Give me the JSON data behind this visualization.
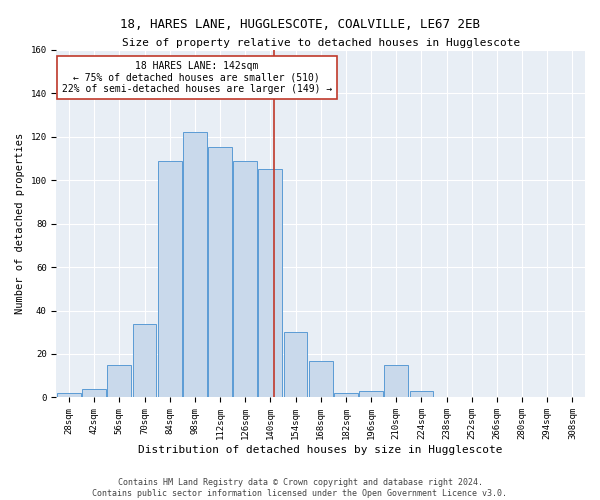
{
  "title1": "18, HARES LANE, HUGGLESCOTE, COALVILLE, LE67 2EB",
  "title2": "Size of property relative to detached houses in Hugglescote",
  "xlabel": "Distribution of detached houses by size in Hugglescote",
  "ylabel": "Number of detached properties",
  "footer1": "Contains HM Land Registry data © Crown copyright and database right 2024.",
  "footer2": "Contains public sector information licensed under the Open Government Licence v3.0.",
  "bar_labels": [
    "28sqm",
    "42sqm",
    "56sqm",
    "70sqm",
    "84sqm",
    "98sqm",
    "112sqm",
    "126sqm",
    "140sqm",
    "154sqm",
    "168sqm",
    "182sqm",
    "196sqm",
    "210sqm",
    "224sqm",
    "238sqm",
    "252sqm",
    "266sqm",
    "280sqm",
    "294sqm",
    "308sqm"
  ],
  "bar_heights": [
    2,
    4,
    15,
    34,
    109,
    122,
    115,
    109,
    105,
    30,
    17,
    2,
    3,
    15,
    3,
    0,
    0,
    0,
    0,
    0,
    0
  ],
  "bar_color": "#c9d9eb",
  "bar_edge_color": "#5b9bd5",
  "property_size": 142,
  "vline_color": "#c0392b",
  "annotation_line1": "18 HARES LANE: 142sqm",
  "annotation_line2": "← 75% of detached houses are smaller (510)",
  "annotation_line3": "22% of semi-detached houses are larger (149) →",
  "annotation_box_edge": "#c0392b",
  "annotation_box_face": "#ffffff",
  "ylim": [
    0,
    160
  ],
  "bg_color": "#e8eef5",
  "grid_color": "#ffffff",
  "title1_fontsize": 9,
  "title2_fontsize": 8,
  "xlabel_fontsize": 8,
  "ylabel_fontsize": 7.5,
  "tick_fontsize": 6.5,
  "annotation_fontsize": 7,
  "footer_fontsize": 6
}
